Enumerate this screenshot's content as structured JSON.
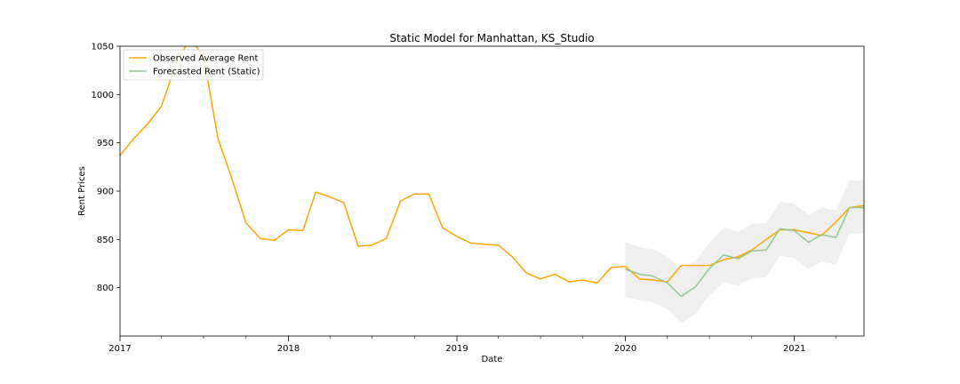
{
  "chart_data": {
    "type": "line",
    "title": "Static Model for Manhattan, KS_Studio",
    "xlabel": "Date",
    "ylabel": "Rent Prices",
    "xlim": [
      "2017-01-01",
      "2021-06-01"
    ],
    "ylim": [
      750,
      1050
    ],
    "grid": false,
    "legend_position": "top-left",
    "x_ticks_major": [
      {
        "date": "2017-01-01",
        "label": "2017"
      },
      {
        "date": "2018-01-01",
        "label": "2018"
      },
      {
        "date": "2019-01-01",
        "label": "2019"
      },
      {
        "date": "2020-01-01",
        "label": "2020"
      },
      {
        "date": "2021-01-01",
        "label": "2021"
      }
    ],
    "y_ticks": [
      800,
      850,
      900,
      950,
      1000,
      1050
    ],
    "series": [
      {
        "name": "Observed Average Rent",
        "color": "#FFA500",
        "points": [
          [
            "2017-01-01",
            937
          ],
          [
            "2017-02-01",
            955
          ],
          [
            "2017-03-01",
            969
          ],
          [
            "2017-04-01",
            988
          ],
          [
            "2017-05-01",
            1030
          ],
          [
            "2017-06-01",
            1058
          ],
          [
            "2017-07-01",
            1040
          ],
          [
            "2017-08-01",
            955
          ],
          [
            "2017-09-01",
            912
          ],
          [
            "2017-10-01",
            867
          ],
          [
            "2017-11-01",
            851
          ],
          [
            "2017-12-01",
            849
          ],
          [
            "2018-01-01",
            860
          ],
          [
            "2018-02-01",
            859
          ],
          [
            "2018-03-01",
            899
          ],
          [
            "2018-04-01",
            894
          ],
          [
            "2018-05-01",
            888
          ],
          [
            "2018-06-01",
            843
          ],
          [
            "2018-07-01",
            844
          ],
          [
            "2018-08-01",
            851
          ],
          [
            "2018-09-01",
            890
          ],
          [
            "2018-10-01",
            897
          ],
          [
            "2018-11-01",
            897
          ],
          [
            "2018-12-01",
            862
          ],
          [
            "2019-01-01",
            853
          ],
          [
            "2019-02-01",
            846
          ],
          [
            "2019-03-01",
            845
          ],
          [
            "2019-04-01",
            844
          ],
          [
            "2019-05-01",
            832
          ],
          [
            "2019-06-01",
            815
          ],
          [
            "2019-07-01",
            809
          ],
          [
            "2019-08-01",
            814
          ],
          [
            "2019-09-01",
            806
          ],
          [
            "2019-10-01",
            808
          ],
          [
            "2019-11-01",
            805
          ],
          [
            "2019-12-01",
            821
          ],
          [
            "2020-01-01",
            822
          ],
          [
            "2020-02-01",
            809
          ],
          [
            "2020-03-01",
            808
          ],
          [
            "2020-04-01",
            806
          ],
          [
            "2020-05-01",
            823
          ],
          [
            "2020-06-01",
            823
          ],
          [
            "2020-07-01",
            823
          ],
          [
            "2020-08-01",
            829
          ],
          [
            "2020-09-01",
            832
          ],
          [
            "2020-10-01",
            839
          ],
          [
            "2020-11-01",
            850
          ],
          [
            "2020-12-01",
            860
          ],
          [
            "2021-01-01",
            860
          ],
          [
            "2021-02-01",
            857
          ],
          [
            "2021-03-01",
            854
          ],
          [
            "2021-04-01",
            868
          ],
          [
            "2021-05-01",
            883
          ],
          [
            "2021-06-01",
            885
          ]
        ]
      },
      {
        "name": "Forecasted Rent (Static)",
        "color": "#8FC98F",
        "points": [
          [
            "2020-01-01",
            819
          ],
          [
            "2020-02-01",
            814
          ],
          [
            "2020-03-01",
            812
          ],
          [
            "2020-04-01",
            805
          ],
          [
            "2020-05-01",
            791
          ],
          [
            "2020-06-01",
            801
          ],
          [
            "2020-07-01",
            820
          ],
          [
            "2020-08-01",
            834
          ],
          [
            "2020-09-01",
            830
          ],
          [
            "2020-10-01",
            838
          ],
          [
            "2020-11-01",
            839
          ],
          [
            "2020-12-01",
            861
          ],
          [
            "2021-01-01",
            859
          ],
          [
            "2021-02-01",
            847
          ],
          [
            "2021-03-01",
            855
          ],
          [
            "2021-04-01",
            852
          ],
          [
            "2021-05-01",
            883
          ],
          [
            "2021-06-01",
            883
          ]
        ]
      }
    ],
    "confidence_band": {
      "color": "#EFEFEF",
      "points": [
        [
          "2020-01-01",
          790,
          847
        ],
        [
          "2020-02-01",
          787,
          842
        ],
        [
          "2020-03-01",
          785,
          840
        ],
        [
          "2020-04-01",
          778,
          832
        ],
        [
          "2020-05-01",
          763,
          819
        ],
        [
          "2020-06-01",
          773,
          828
        ],
        [
          "2020-07-01",
          792,
          846
        ],
        [
          "2020-08-01",
          806,
          862
        ],
        [
          "2020-09-01",
          802,
          858
        ],
        [
          "2020-10-01",
          810,
          866
        ],
        [
          "2020-11-01",
          811,
          867
        ],
        [
          "2020-12-01",
          833,
          889
        ],
        [
          "2021-01-01",
          831,
          887
        ],
        [
          "2021-02-01",
          819,
          875
        ],
        [
          "2021-03-01",
          827,
          883
        ],
        [
          "2021-04-01",
          824,
          880
        ],
        [
          "2021-05-01",
          856,
          911
        ],
        [
          "2021-06-01",
          856,
          911
        ]
      ]
    }
  }
}
